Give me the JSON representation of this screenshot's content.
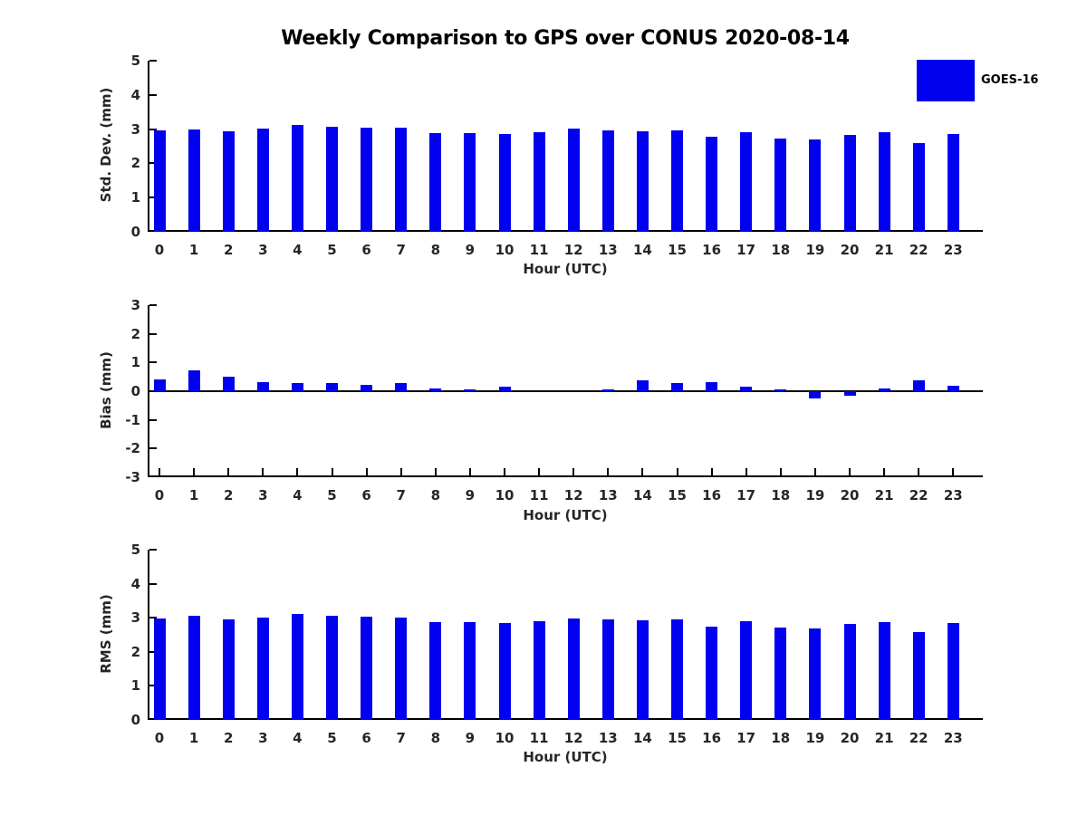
{
  "title": "Weekly Comparison to GPS over CONUS 2020-08-14",
  "legend": {
    "label": "GOES-16",
    "color": "#0101f0"
  },
  "colors": {
    "bar": "#0101f0",
    "axis": "#000000",
    "tick_text": "#262626"
  },
  "chart_data": [
    {
      "type": "bar",
      "name": "std-dev",
      "ylabel": "Std. Dev. (mm)",
      "xlabel": "Hour (UTC)",
      "categories": [
        "0",
        "1",
        "2",
        "3",
        "4",
        "5",
        "6",
        "7",
        "8",
        "9",
        "10",
        "11",
        "12",
        "13",
        "14",
        "15",
        "16",
        "17",
        "18",
        "19",
        "20",
        "21",
        "22",
        "23"
      ],
      "values": [
        2.95,
        2.98,
        2.93,
        3.01,
        3.12,
        3.07,
        3.04,
        3.03,
        2.88,
        2.89,
        2.87,
        2.92,
        3.01,
        2.95,
        2.93,
        2.95,
        2.77,
        2.9,
        2.72,
        2.71,
        2.83,
        2.9,
        2.58,
        2.85
      ],
      "ylim": [
        0,
        5
      ],
      "yticks": [
        0,
        1,
        2,
        3,
        4,
        5
      ],
      "legend_entries": [
        "GOES-16"
      ],
      "legend_position": "upper right",
      "grid": false
    },
    {
      "type": "bar",
      "name": "bias",
      "ylabel": "Bias (mm)",
      "xlabel": "Hour (UTC)",
      "categories": [
        "0",
        "1",
        "2",
        "3",
        "4",
        "5",
        "6",
        "7",
        "8",
        "9",
        "10",
        "11",
        "12",
        "13",
        "14",
        "15",
        "16",
        "17",
        "18",
        "19",
        "20",
        "21",
        "22",
        "23"
      ],
      "values": [
        0.41,
        0.72,
        0.52,
        0.33,
        0.3,
        0.29,
        0.23,
        0.27,
        0.08,
        0.07,
        0.16,
        0.0,
        0.0,
        0.05,
        0.38,
        0.27,
        0.33,
        0.17,
        0.06,
        -0.25,
        -0.17,
        0.11,
        0.39,
        0.2
      ],
      "ylim": [
        -3,
        3
      ],
      "yticks": [
        -3,
        -2,
        -1,
        0,
        1,
        2,
        3
      ],
      "legend_entries": [
        "GOES-16"
      ],
      "grid": false
    },
    {
      "type": "bar",
      "name": "rms",
      "ylabel": "RMS (mm)",
      "xlabel": "Hour (UTC)",
      "categories": [
        "0",
        "1",
        "2",
        "3",
        "4",
        "5",
        "6",
        "7",
        "8",
        "9",
        "10",
        "11",
        "12",
        "13",
        "14",
        "15",
        "16",
        "17",
        "18",
        "19",
        "20",
        "21",
        "22",
        "23"
      ],
      "values": [
        2.98,
        3.06,
        2.96,
        3.01,
        3.12,
        3.07,
        3.04,
        3.01,
        2.86,
        2.87,
        2.85,
        2.91,
        2.98,
        2.94,
        2.93,
        2.94,
        2.75,
        2.9,
        2.71,
        2.69,
        2.81,
        2.87,
        2.59,
        2.84
      ],
      "ylim": [
        0,
        5
      ],
      "yticks": [
        0,
        1,
        2,
        3,
        4,
        5
      ],
      "legend_entries": [
        "GOES-16"
      ],
      "grid": false
    }
  ]
}
